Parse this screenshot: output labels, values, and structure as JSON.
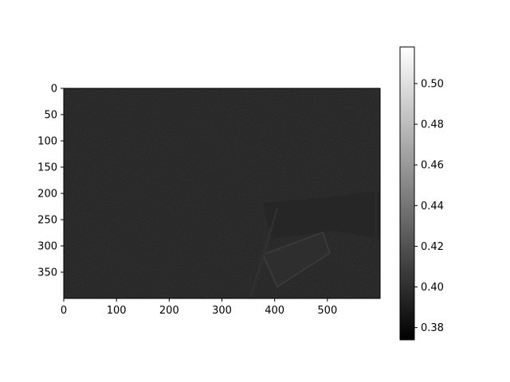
{
  "chart_data": {
    "type": "heatmap",
    "title": "",
    "xlabel": "",
    "ylabel": "",
    "colormap": "gray",
    "image_extent": {
      "x": [
        0,
        600
      ],
      "y": [
        0,
        400
      ]
    },
    "xticks": [
      0,
      100,
      200,
      300,
      400,
      500
    ],
    "yticks": [
      0,
      50,
      100,
      150,
      200,
      250,
      300,
      350
    ],
    "colorbar": {
      "range": [
        0.374,
        0.518
      ],
      "ticks": [
        0.38,
        0.4,
        0.42,
        0.44,
        0.46,
        0.48,
        0.5
      ],
      "tick_labels": [
        "0.38",
        "0.40",
        "0.42",
        "0.44",
        "0.46",
        "0.48",
        "0.50"
      ]
    },
    "grid": false
  }
}
